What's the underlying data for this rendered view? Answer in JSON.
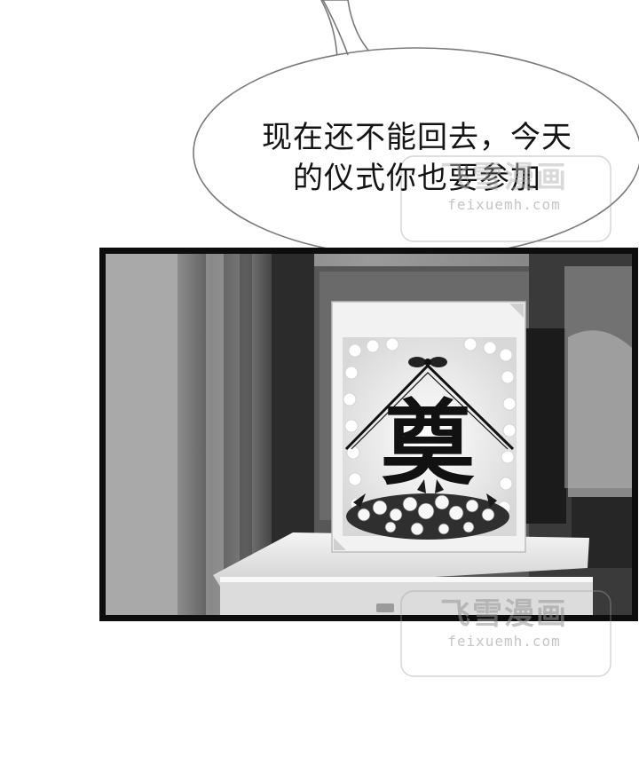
{
  "speech_bubble": {
    "lines": [
      "现在还不能回去，今天",
      "的仪式你也要参加"
    ]
  },
  "memorial_portrait": {
    "character": "奠"
  },
  "watermarks": [
    {
      "brand": "飞雪漫画",
      "url": "feixuemh.com"
    },
    {
      "brand": "飞雪漫画",
      "url": "feixuemh.com"
    }
  ],
  "colors": {
    "panel_border": "#0d0d0d",
    "bubble_stroke": "#7a7a7a"
  }
}
